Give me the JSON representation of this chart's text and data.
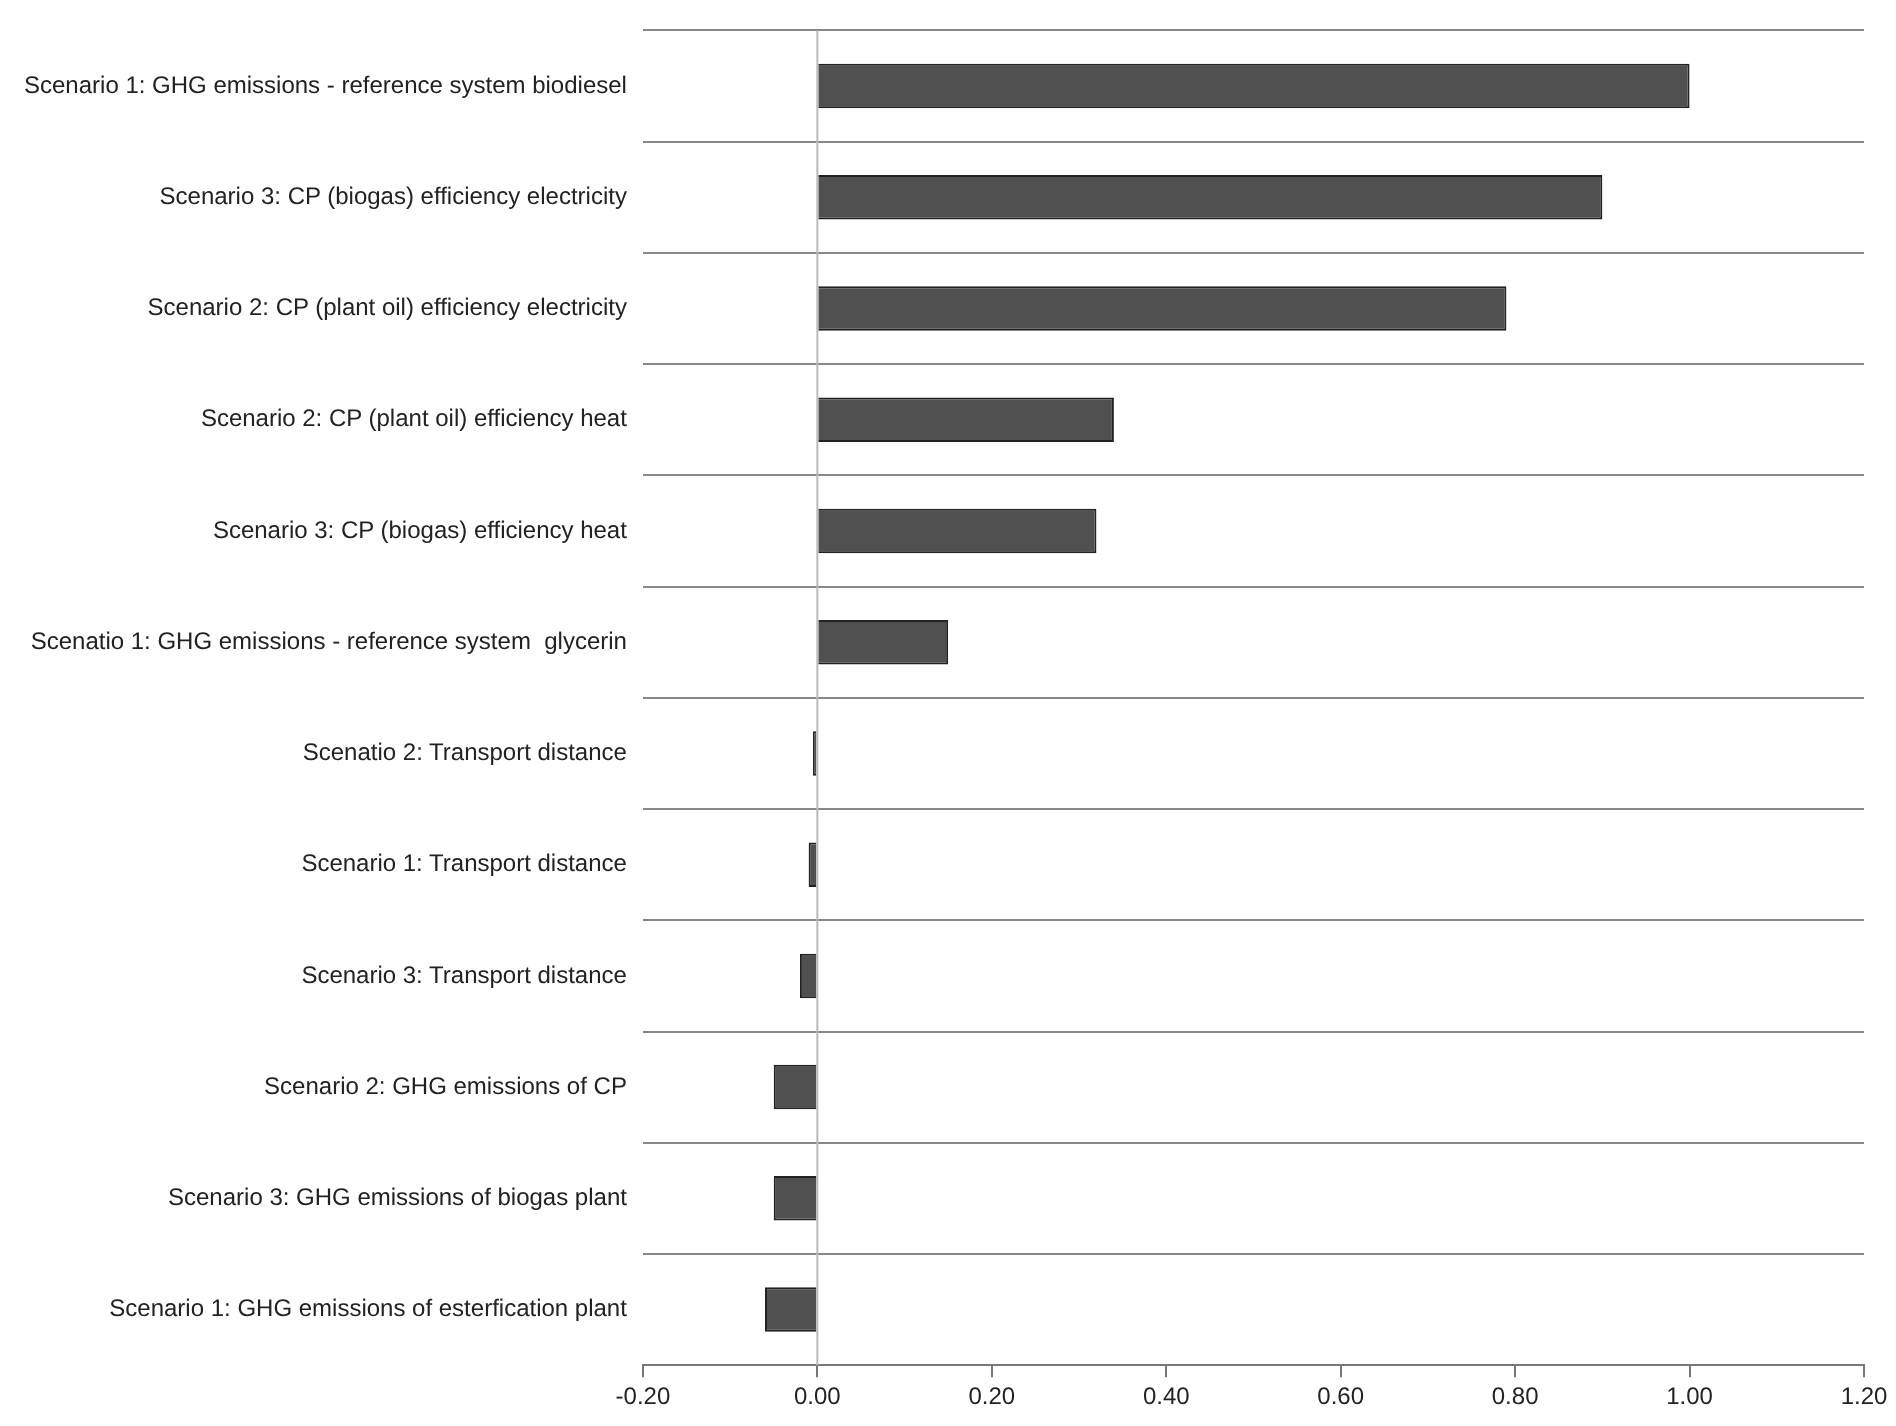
{
  "chart_data": {
    "type": "bar",
    "orientation": "horizontal",
    "categories": [
      "Scenario 1: GHG emissions - reference system biodiesel",
      "Scenario 3: CP (biogas) efficiency electricity",
      "Scenario 2: CP (plant oil) efficiency electricity",
      "Scenario 2: CP (plant oil) efficiency heat",
      "Scenario 3: CP (biogas) efficiency heat",
      "Scenatio 1: GHG emissions - reference system  glycerin",
      "Scenatio 2: Transport distance",
      "Scenario 1: Transport distance",
      "Scenario 3: Transport distance",
      "Scenario 2: GHG emissions of CP",
      "Scenario 3: GHG emissions of biogas plant",
      "Scenario 1: GHG emissions of esterfication plant"
    ],
    "values": [
      1.0,
      0.9,
      0.79,
      0.34,
      0.32,
      0.15,
      -0.005,
      -0.01,
      -0.02,
      -0.05,
      -0.05,
      -0.06
    ],
    "color": "#505050",
    "xlim": [
      -0.2,
      1.2
    ],
    "xticks": [
      {
        "value": -0.2,
        "label": "-0.20"
      },
      {
        "value": 0,
        "label": "0.00"
      },
      {
        "value": 0.2,
        "label": "0.20"
      },
      {
        "value": 0.4,
        "label": "0.40"
      },
      {
        "value": 0.6,
        "label": "0.60"
      },
      {
        "value": 0.8,
        "label": "0.80"
      },
      {
        "value": 1.0,
        "label": "1.00"
      },
      {
        "value": 1.2,
        "label": "1.20"
      }
    ],
    "grid": "y",
    "legend": false,
    "ref_lines": [
      {
        "axis": "x",
        "value": 0,
        "color": "#bbbbbb"
      }
    ]
  }
}
